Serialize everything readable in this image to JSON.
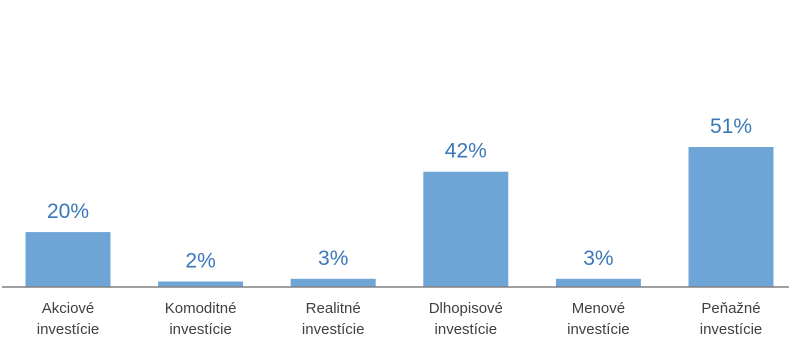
{
  "chart_data": {
    "type": "bar",
    "title": "",
    "xlabel": "",
    "ylabel": "",
    "ylim": [
      0,
      51
    ],
    "grid": false,
    "categories": [
      [
        "Akciové",
        "investície"
      ],
      [
        "Komoditné",
        "investície"
      ],
      [
        "Realitné",
        "investície"
      ],
      [
        "Dlhopisové",
        "investície"
      ],
      [
        "Menové",
        "investície"
      ],
      [
        "Peňažné",
        "investície"
      ]
    ],
    "values": [
      20,
      2,
      3,
      42,
      3,
      51
    ],
    "value_labels": [
      "20%",
      "2%",
      "3%",
      "42%",
      "3%",
      "51%"
    ],
    "colors": {
      "bar": "#6fa4d6",
      "value_text": "#3a78b8",
      "axis": "#808080",
      "category_text": "#404040"
    }
  }
}
